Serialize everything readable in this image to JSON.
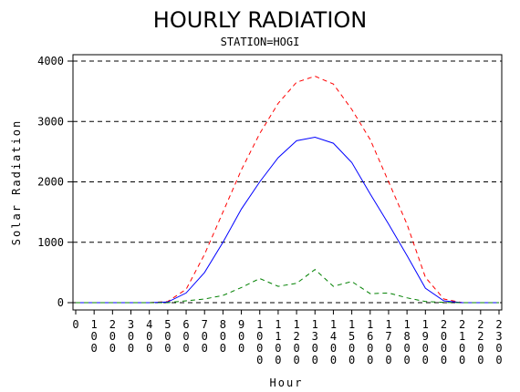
{
  "chart_data": {
    "type": "line",
    "title": "HOURLY RADIATION",
    "subtitle": "STATION=HOGI",
    "xlabel": "Hour",
    "ylabel": "Solar Radiation",
    "ylim": [
      0,
      4000
    ],
    "yticks": [
      "0",
      "1000",
      "2000",
      "3000",
      "4000"
    ],
    "ygrid_values": [
      0,
      1000,
      2000,
      3000,
      4000
    ],
    "xticks": [
      "0",
      "100",
      "200",
      "300",
      "400",
      "500",
      "600",
      "700",
      "800",
      "900",
      "1000",
      "1100",
      "1200",
      "1300",
      "1400",
      "1500",
      "1600",
      "1700",
      "1800",
      "1900",
      "2000",
      "2100",
      "2200",
      "2300"
    ],
    "x": [
      0,
      100,
      200,
      300,
      400,
      500,
      600,
      700,
      800,
      900,
      1000,
      1100,
      1200,
      1300,
      1400,
      1500,
      1600,
      1700,
      1800,
      1900,
      2000,
      2100,
      2200,
      2300
    ],
    "series": [
      {
        "color": "#ff0000",
        "style": "dashed",
        "values": [
          0,
          0,
          0,
          0,
          0,
          20,
          220,
          800,
          1500,
          2200,
          2800,
          3300,
          3650,
          3750,
          3620,
          3200,
          2700,
          2000,
          1300,
          420,
          60,
          0,
          0,
          0
        ]
      },
      {
        "color": "#0000ff",
        "style": "solid",
        "values": [
          0,
          0,
          0,
          0,
          0,
          10,
          160,
          500,
          1000,
          1550,
          2000,
          2400,
          2680,
          2740,
          2640,
          2320,
          1800,
          1300,
          780,
          240,
          30,
          0,
          0,
          0
        ]
      },
      {
        "color": "#008000",
        "style": "dashed",
        "values": [
          0,
          0,
          0,
          0,
          0,
          0,
          30,
          60,
          120,
          250,
          400,
          270,
          320,
          550,
          270,
          350,
          150,
          160,
          80,
          20,
          5,
          0,
          0,
          0
        ]
      }
    ]
  }
}
